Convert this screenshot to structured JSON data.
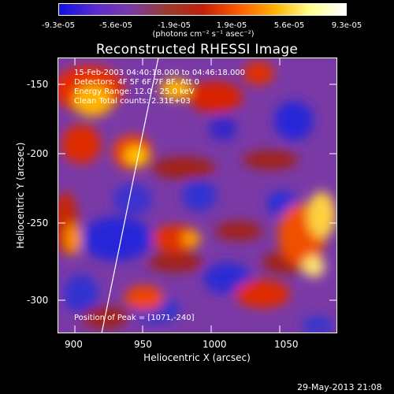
{
  "colorbar": {
    "labels": [
      "-9.3e-05",
      "-5.6e-05",
      "-1.9e-05",
      "1.9e-05",
      "5.6e-05",
      "9.3e-05"
    ],
    "unit": "(photons cm⁻² s⁻¹ asec⁻²)",
    "stops": [
      "#1010e0",
      "#5a2bd0",
      "#7a3aa6",
      "#9a3b2c",
      "#c0200a",
      "#ff5a00",
      "#ffb000",
      "#ffff90",
      "#ffffff"
    ]
  },
  "title": "Reconstructed RHESSI Image",
  "annotations": {
    "line1": "15-Feb-2003 04:40:18.000 to 04:46:18.000",
    "line2": "Detectors: 4F 5F 6F 7F 8F, Att 0",
    "line3": "Energy Range: 12.0 - 25.0 keV",
    "line4": "Clean    Total counts: 2.31E+03",
    "peak": "Position of Peak = [1071,-240]"
  },
  "axes": {
    "xlabel": "Heliocentric X (arcsec)",
    "ylabel": "Heliocentric Y (arcsec)",
    "xticks": [
      "900",
      "950",
      "1000",
      "1050"
    ],
    "yticks": [
      "-150",
      "-200",
      "-250",
      "-300"
    ]
  },
  "timestamp": "29-May-2013 21:08"
}
